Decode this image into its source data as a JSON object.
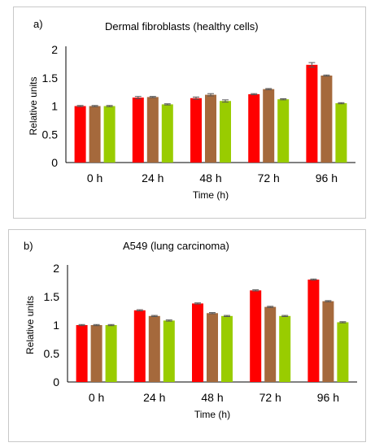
{
  "chart_data": [
    {
      "type": "bar",
      "panel_label": "a)",
      "title": "Dermal fibroblasts (healthy cells)",
      "xlabel": "Time (h)",
      "ylabel": "Relative units",
      "categories": [
        "0 h",
        "24 h",
        "48 h",
        "72 h",
        "96 h"
      ],
      "yticks": [
        "0",
        "0.5",
        "1",
        "1.5",
        "2"
      ],
      "ylim": [
        0,
        2
      ],
      "grid": false,
      "legend": "none",
      "error_bars": true,
      "series": [
        {
          "color": "#ff0000",
          "values": [
            1.0,
            1.15,
            1.14,
            1.21,
            1.73
          ],
          "errors": [
            0.01,
            0.02,
            0.02,
            0.01,
            0.04
          ]
        },
        {
          "color": "#a5693c",
          "values": [
            1.0,
            1.16,
            1.2,
            1.3,
            1.54
          ],
          "errors": [
            0.01,
            0.01,
            0.02,
            0.01,
            0.01
          ]
        },
        {
          "color": "#99cc00",
          "values": [
            1.0,
            1.03,
            1.09,
            1.12,
            1.05
          ],
          "errors": [
            0.01,
            0.01,
            0.02,
            0.01,
            0.01
          ]
        }
      ]
    },
    {
      "type": "bar",
      "panel_label": "b)",
      "title": "A549 (lung carcinoma)",
      "xlabel": "Time (h)",
      "ylabel": "Relative units",
      "categories": [
        "0 h",
        "24 h",
        "48 h",
        "72 h",
        "96 h"
      ],
      "yticks": [
        "0",
        "0.5",
        "1",
        "1.5",
        "2"
      ],
      "ylim": [
        0,
        2
      ],
      "grid": false,
      "legend": "none",
      "error_bars": true,
      "series": [
        {
          "color": "#ff0000",
          "values": [
            1.0,
            1.26,
            1.38,
            1.61,
            1.8
          ],
          "errors": [
            0.01,
            0.01,
            0.01,
            0.01,
            0.01
          ]
        },
        {
          "color": "#a5693c",
          "values": [
            1.0,
            1.16,
            1.21,
            1.32,
            1.42
          ],
          "errors": [
            0.01,
            0.01,
            0.01,
            0.01,
            0.01
          ]
        },
        {
          "color": "#99cc00",
          "values": [
            1.0,
            1.08,
            1.16,
            1.16,
            1.05
          ],
          "errors": [
            0.01,
            0.01,
            0.01,
            0.01,
            0.01
          ]
        }
      ]
    }
  ]
}
